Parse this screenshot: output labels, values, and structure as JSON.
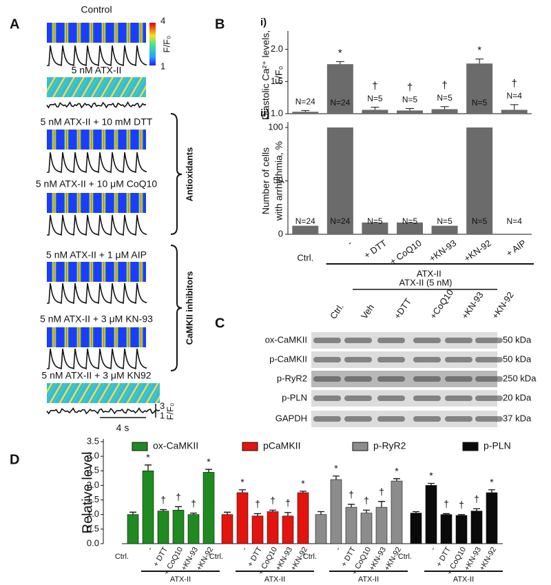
{
  "panel_labels": {
    "a": "A",
    "b": "B",
    "c": "C",
    "d": "D"
  },
  "panel_a": {
    "conditions": [
      "Control",
      "5 nM ATX-II",
      "5 nM ATX-II + 10 mM DTT",
      "5 nM ATX-II + 10 μM CoQ10",
      "5 nM ATX-II + 1 μM AIP",
      "5 nM ATX-II + 3 μM KN-93",
      "5 nM ATX-II + 3 μM KN92"
    ],
    "colorbar": {
      "max": 4,
      "min": 1,
      "label": "F/F₀"
    },
    "groups": [
      "Antioxidants",
      "CaMKII inhibitors"
    ],
    "scale_bar": {
      "top": 3,
      "bottom": 1,
      "unit": "F/F₀",
      "time": "4 s"
    }
  },
  "chart_data": [
    {
      "type": "bar",
      "label": "i)",
      "ylabel": [
        "Diastolic Ca²⁺ levels,",
        "F/F₀"
      ],
      "ylim": [
        1,
        2.2
      ],
      "yticks": [
        {
          "value": 1,
          "label": "1.0"
        },
        1.5,
        {
          "value": 2,
          "label": "2.0"
        }
      ],
      "color": "#6b6b6b",
      "values": [
        1.03,
        1.77,
        1.06,
        1.05,
        1.07,
        1.78,
        1.06
      ],
      "errors": [
        0.02,
        0.04,
        0.04,
        0.03,
        0.04,
        0.07,
        0.08
      ],
      "annotations": [
        null,
        "*",
        "†",
        "†",
        "†",
        "*",
        "†"
      ],
      "n_labels": [
        "N=24",
        "N=24",
        "N=5",
        "N=5",
        "N=5",
        "N=5",
        "N=4"
      ]
    },
    {
      "type": "bar",
      "label": "ii)",
      "ylabel": [
        "Number of cells",
        "with arrhythmia, %"
      ],
      "ylim": [
        0,
        100
      ],
      "yticks": [
        0,
        50,
        100
      ],
      "color": "#6b6b6b",
      "categories": [
        "Ctrl.",
        "-",
        "+ DTT",
        "+ CoQ10",
        "+KN-93",
        "+KN-92",
        "+ AIP"
      ],
      "group_label": "ATX-II",
      "values": [
        8,
        100,
        11,
        11,
        8,
        100,
        0
      ],
      "n_labels": [
        "N=24",
        "N=24",
        "N=5",
        "N=5",
        "N=5",
        "N=5",
        "N=4"
      ]
    },
    {
      "type": "grouped_bar",
      "ylabel": "Relative level",
      "ylim": [
        0,
        3.5
      ],
      "yticks": [
        {
          "value": 0,
          "label": "0.0"
        },
        0.5,
        {
          "value": 1,
          "label": "1.0"
        },
        1.5,
        {
          "value": 2,
          "label": "2.0"
        },
        2.5,
        {
          "value": 3,
          "label": "3.0"
        },
        3.5
      ],
      "series": [
        {
          "name": "ox-CaMKII",
          "color": "#1f8a1f",
          "values": [
            1.0,
            2.5,
            1.12,
            1.15,
            1.0,
            2.45
          ],
          "errors": [
            0.08,
            0.2,
            0.05,
            0.12,
            0.05,
            0.1
          ],
          "annotations": [
            null,
            "*",
            "†",
            "†",
            "†",
            "*"
          ],
          "categories": [
            "Ctrl.",
            "-",
            "+ DTT",
            "+ CoQ10",
            "+KN-93",
            "+KN-92"
          ],
          "group_label": "ATX-II"
        },
        {
          "name": "pCaMKII",
          "color": "#e3140e",
          "values": [
            1.0,
            1.75,
            0.95,
            1.1,
            0.95,
            1.75
          ],
          "errors": [
            0.08,
            0.1,
            0.08,
            0.05,
            0.12,
            0.05
          ],
          "annotations": [
            null,
            "*",
            "†",
            "†",
            "†",
            "*"
          ],
          "categories": [
            "Ctrl.",
            "-",
            "+ DTT",
            "+ CoQ10",
            "+KN-93",
            "+KN-92"
          ],
          "group_label": "ATX-II"
        },
        {
          "name": "p-RyR2",
          "color": "#8c8c8c",
          "values": [
            1.0,
            2.2,
            1.25,
            1.05,
            1.25,
            2.15
          ],
          "errors": [
            0.1,
            0.12,
            0.1,
            0.1,
            0.2,
            0.08
          ],
          "annotations": [
            null,
            "*",
            "†",
            "†",
            "†",
            "*"
          ],
          "categories": [
            "Ctrl.",
            "-",
            "+ DTT",
            "+ CoQ10",
            "+KN-93",
            "+KN-92"
          ],
          "group_label": "ATX-II"
        },
        {
          "name": "p-PLN",
          "color": "#0a0a0a",
          "values": [
            1.05,
            2.0,
            1.0,
            0.97,
            1.12,
            1.75
          ],
          "errors": [
            0.05,
            0.07,
            0.03,
            0.03,
            0.08,
            0.1
          ],
          "annotations": [
            null,
            "*",
            "†",
            "†",
            "†",
            "*"
          ],
          "categories": [
            "Ctrl.",
            "-",
            "+ DTT",
            "+ CoQ10",
            "+KN-93",
            "+KN-92"
          ],
          "group_label": "ATX-II"
        }
      ]
    }
  ],
  "panel_c": {
    "header": "ATX-II (5 nM)",
    "lanes": [
      "Ctrl.",
      "Veh",
      "+DTT",
      "+CoQ10",
      "+KN-93",
      "+KN-92"
    ],
    "rows": [
      {
        "label": "ox-CaMKII",
        "size": "50 kDa"
      },
      {
        "label": "p-CaMKII",
        "size": "50 kDa"
      },
      {
        "label": "p-RyR2",
        "size": "250 kDa"
      },
      {
        "label": "p-PLN",
        "size": "20 kDa"
      },
      {
        "label": "GAPDH",
        "size": "37 kDa"
      }
    ]
  }
}
